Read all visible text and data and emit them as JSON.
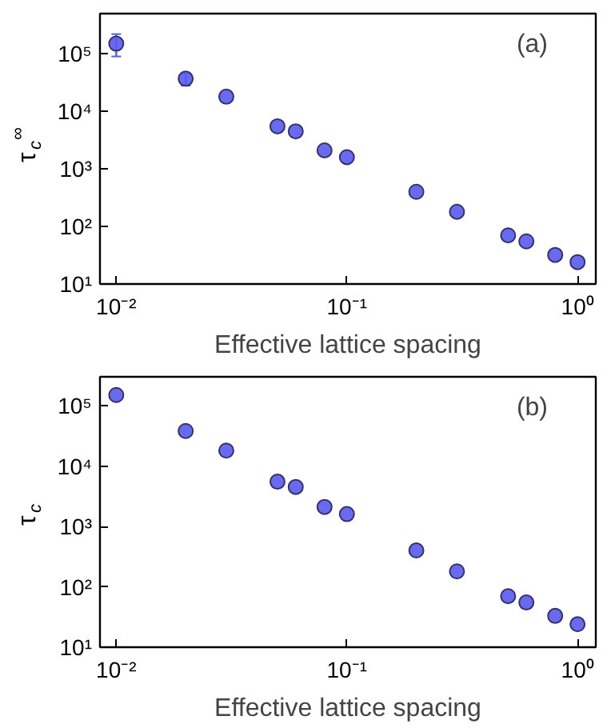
{
  "chart_data": [
    {
      "type": "scatter",
      "xlabel": "Effective lattice spacing",
      "ylabel": "τ$_{c}$$^{∞}$",
      "annotations": [
        "(a)"
      ],
      "log": "xy",
      "grid": false,
      "marker": "circle",
      "x": [
        0.01,
        0.02,
        0.03,
        0.05,
        0.06,
        0.08,
        0.1,
        0.2,
        0.3,
        0.5,
        0.6,
        0.8,
        1.0
      ],
      "series": [
        {
          "color": "#5a5af0",
          "values": [
            150000,
            37000,
            18000,
            5500,
            4500,
            2100,
            1600,
            400,
            180,
            70,
            55,
            32,
            24
          ],
          "errors": [
            [
              90000,
              220000
            ],
            [
              28000,
              46000
            ],
            null,
            null,
            null,
            null,
            null,
            null,
            null,
            null,
            null,
            null,
            null
          ]
        }
      ],
      "xlim": [
        0.0085,
        1.2
      ],
      "ylim": [
        10,
        500000
      ],
      "xticks": [
        {
          "value": 0.01,
          "label": "10⁻²"
        },
        {
          "value": 0.1,
          "label": "10⁻¹"
        },
        {
          "value": 1,
          "label": "10⁰"
        }
      ],
      "yticks": [
        {
          "value": 10,
          "label": "10¹"
        },
        {
          "value": 100,
          "label": "10²"
        },
        {
          "value": 1000,
          "label": "10³"
        },
        {
          "value": 10000,
          "label": "10⁴"
        },
        {
          "value": 100000,
          "label": "10⁵"
        }
      ]
    },
    {
      "type": "scatter",
      "xlabel": "Effective lattice spacing",
      "ylabel": "τ$_{c}$",
      "annotations": [
        "(b)"
      ],
      "log": "xy",
      "grid": false,
      "marker": "circle",
      "x": [
        0.01,
        0.02,
        0.03,
        0.05,
        0.06,
        0.08,
        0.1,
        0.2,
        0.3,
        0.5,
        0.6,
        0.8,
        1.0
      ],
      "series": [
        {
          "color": "#5a5af0",
          "values": [
            150000,
            38000,
            18000,
            5500,
            4500,
            2100,
            1600,
            400,
            180,
            70,
            55,
            33,
            24
          ]
        }
      ],
      "xlim": [
        0.0085,
        1.2
      ],
      "ylim": [
        10,
        300000
      ],
      "xticks": [
        {
          "value": 0.01,
          "label": "10⁻²"
        },
        {
          "value": 0.1,
          "label": "10⁻¹"
        },
        {
          "value": 1,
          "label": "10⁰"
        }
      ],
      "yticks": [
        {
          "value": 10,
          "label": "10¹"
        },
        {
          "value": 100,
          "label": "10²"
        },
        {
          "value": 1000,
          "label": "10³"
        },
        {
          "value": 10000,
          "label": "10⁴"
        },
        {
          "value": 100000,
          "label": "10⁵"
        }
      ]
    }
  ]
}
